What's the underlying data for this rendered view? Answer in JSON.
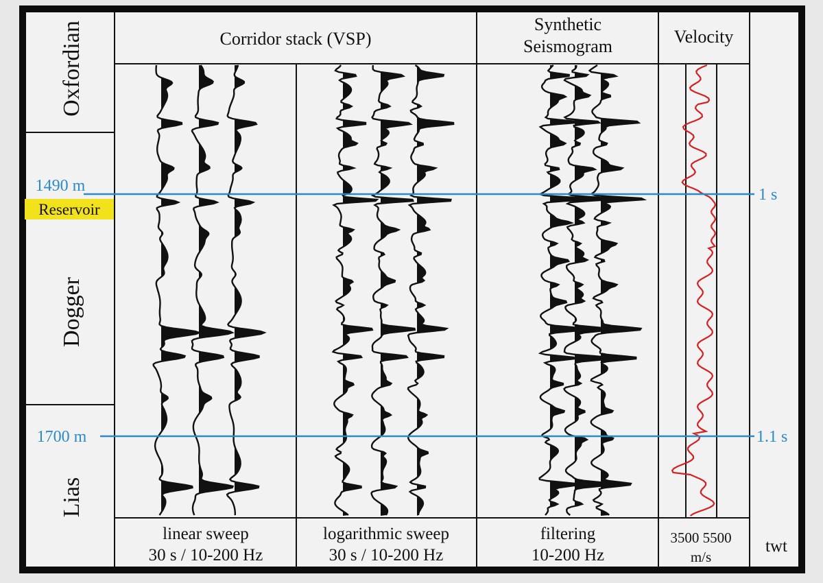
{
  "stratigraphy": {
    "oxfordian": "Oxfordian",
    "dogger": "Dogger",
    "lias": "Lias",
    "reservoir": "Reservoir"
  },
  "headers": {
    "corridor_stack": "Corridor stack (VSP)",
    "synthetic_line1": "Synthetic",
    "synthetic_line2": "Seismogram",
    "velocity": "Velocity"
  },
  "footers": {
    "linear_line1": "linear sweep",
    "linear_line2": "30 s / 10-200 Hz",
    "log_line1": "logarithmic sweep",
    "log_line2": "30 s / 10-200 Hz",
    "filter_line1": "filtering",
    "filter_line2": "10-200 Hz",
    "vel_ticks": "3500 5500",
    "vel_unit": "m/s",
    "twt": "twt"
  },
  "markers": {
    "depth_top": "1490 m",
    "depth_bottom": "1700 m",
    "time_top": "1 s",
    "time_bottom": "1.1 s"
  },
  "colors": {
    "marker_blue": "#2a8ac8",
    "velocity_red": "#d42020",
    "reservoir_yellow": "#f2e21c",
    "ink": "#111111",
    "paper": "#f2f2f2"
  }
}
